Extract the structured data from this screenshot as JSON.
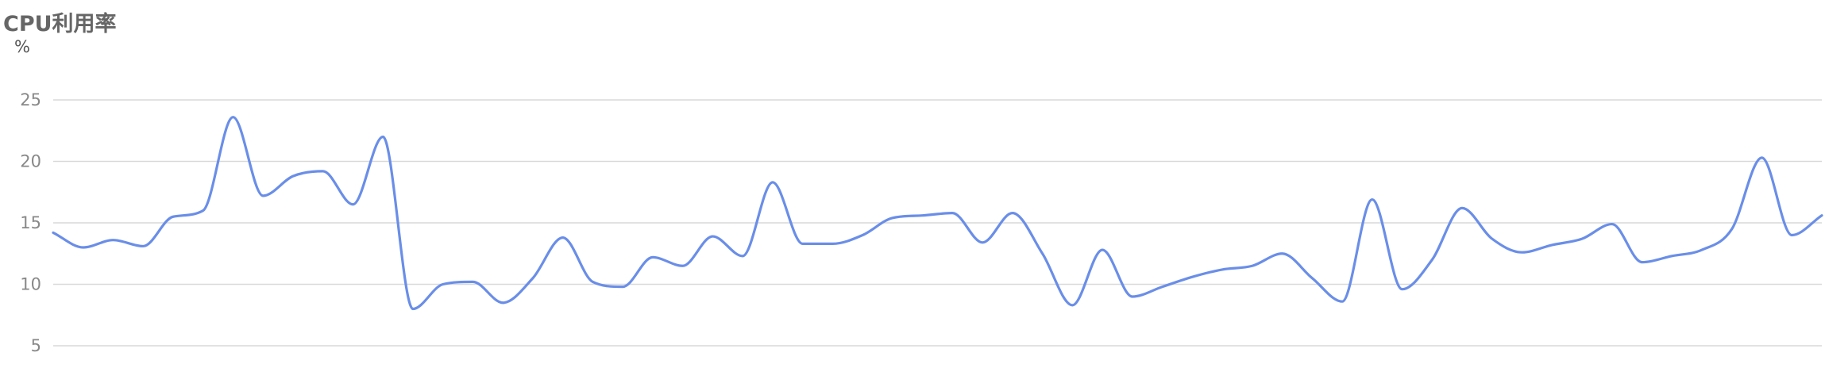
{
  "title": "CPU利用率",
  "colors": {
    "series": "#6a8ee8",
    "grid": "#d9d9d9",
    "axis_text": "#888888",
    "title_text": "#666666"
  },
  "chart_data": {
    "type": "line",
    "title": "CPU利用率",
    "ylabel": "%",
    "xlabel": "",
    "ylim": [
      3,
      25
    ],
    "yticks": [
      5,
      10,
      15,
      20,
      25
    ],
    "grid": true,
    "smooth": true,
    "series": [
      {
        "values": [
          14.2,
          13.0,
          13.6,
          13.1,
          15.5,
          16.0,
          23.6,
          17.2,
          18.8,
          19.2,
          16.5,
          22.0,
          8.0,
          10.0,
          10.2,
          8.5,
          10.5,
          13.8,
          10.2,
          9.8,
          12.2,
          11.5,
          13.9,
          12.3,
          18.3,
          13.3,
          13.3,
          14.0,
          15.4,
          15.6,
          15.8,
          13.4,
          15.8,
          12.5,
          8.3,
          12.8,
          9.0,
          9.8,
          10.6,
          11.2,
          11.5,
          12.5,
          10.5,
          8.6,
          16.9,
          9.6,
          12.0,
          16.2,
          13.7,
          12.6,
          13.2,
          13.7,
          14.9,
          11.8,
          12.3,
          12.8,
          14.5,
          20.3,
          14.0,
          15.6
        ]
      }
    ]
  }
}
